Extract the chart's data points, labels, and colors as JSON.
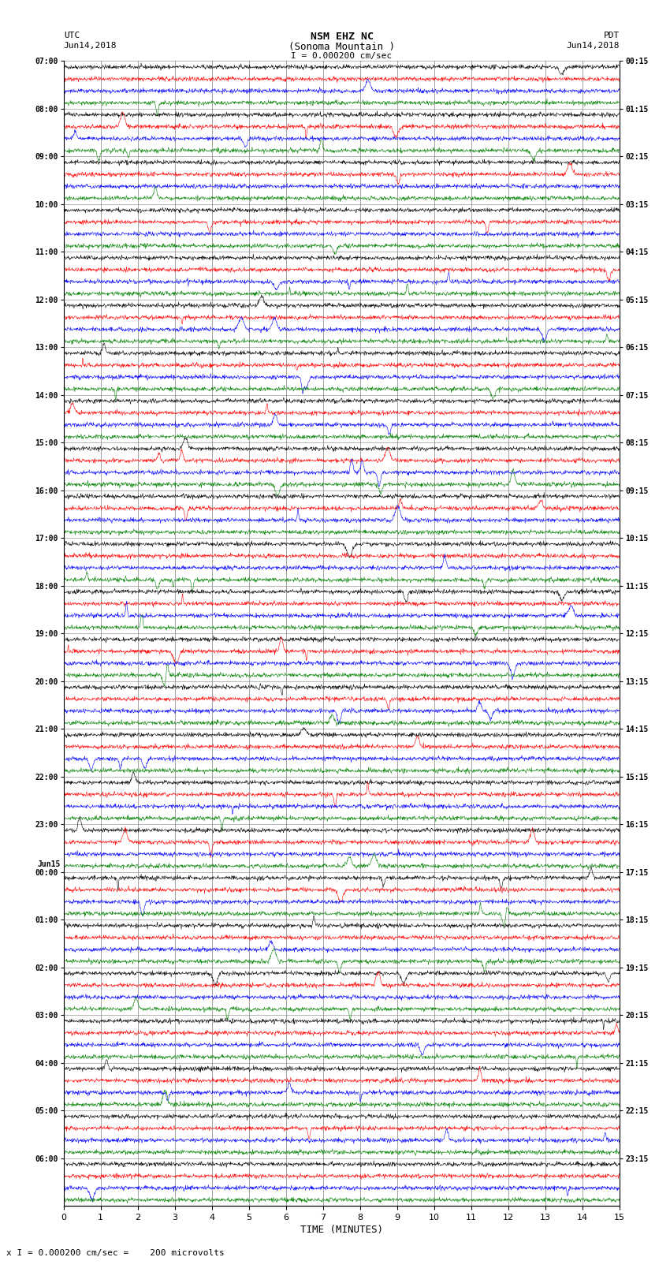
{
  "title_line1": "NSM EHZ NC",
  "title_line2": "(Sonoma Mountain )",
  "scale_label": "I = 0.000200 cm/sec",
  "left_header": "UTC",
  "left_date": "Jun14,2018",
  "right_header": "PDT",
  "right_date": "Jun14,2018",
  "xlabel": "TIME (MINUTES)",
  "footnote": "x I = 0.000200 cm/sec =    200 microvolts",
  "minutes_per_row": 15,
  "samples_per_minute": 100,
  "colors": [
    "black",
    "red",
    "blue",
    "green"
  ],
  "traces_per_block": 4,
  "left_labels_utc": [
    "07:00",
    "08:00",
    "09:00",
    "10:00",
    "11:00",
    "12:00",
    "13:00",
    "14:00",
    "15:00",
    "16:00",
    "17:00",
    "18:00",
    "19:00",
    "20:00",
    "21:00",
    "22:00",
    "23:00",
    "00:00",
    "01:00",
    "02:00",
    "03:00",
    "04:00",
    "05:00",
    "06:00"
  ],
  "right_labels_pdt": [
    "00:15",
    "01:15",
    "02:15",
    "03:15",
    "04:15",
    "05:15",
    "06:15",
    "07:15",
    "08:15",
    "09:15",
    "10:15",
    "11:15",
    "12:15",
    "13:15",
    "14:15",
    "15:15",
    "16:15",
    "17:15",
    "18:15",
    "19:15",
    "20:15",
    "21:15",
    "22:15",
    "23:15"
  ],
  "jun15_block_idx": 17,
  "bg_color": "#ffffff",
  "grid_color": "#808080",
  "noise_amplitude": 0.09,
  "event_amplitude": 0.6,
  "figwidth": 8.5,
  "figheight": 16.13,
  "dpi": 100
}
